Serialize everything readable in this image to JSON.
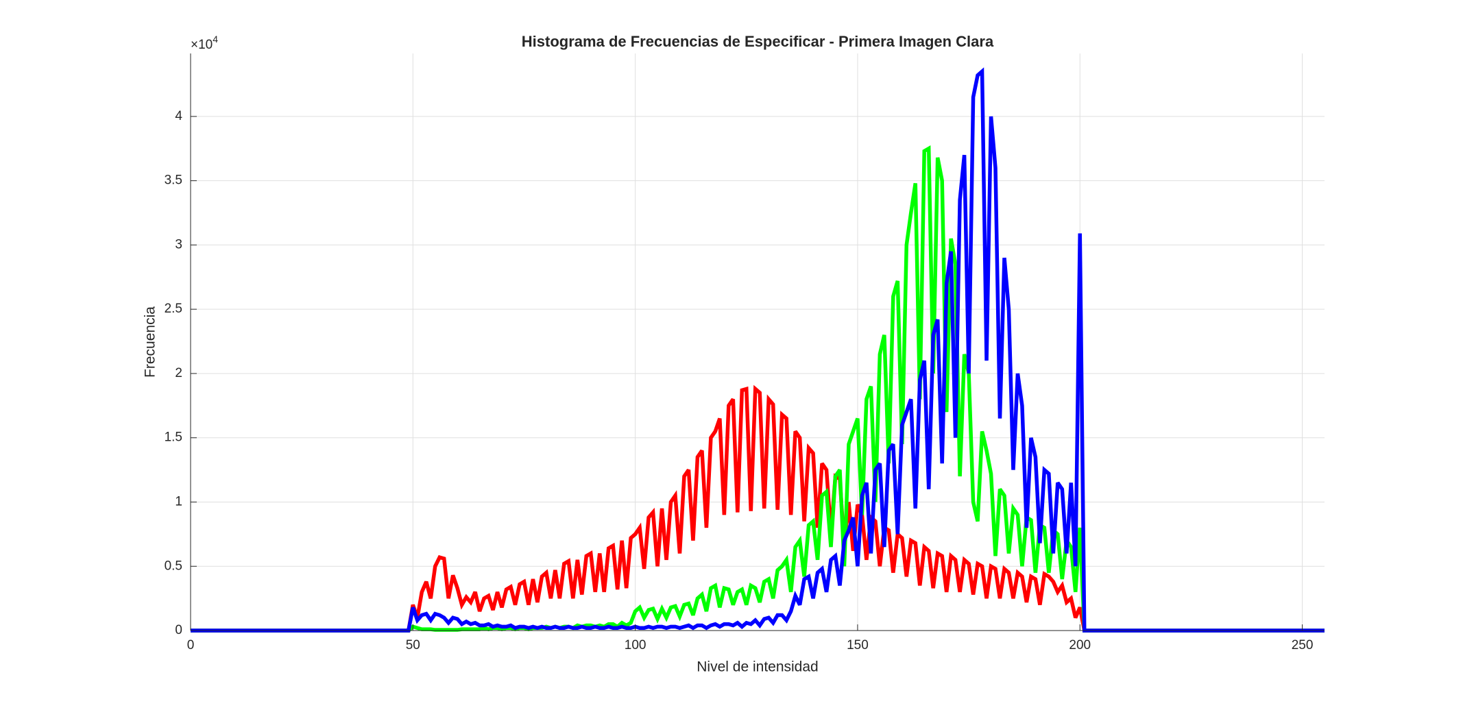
{
  "chart_data": {
    "type": "line",
    "title": "Histograma de Frecuencias de Especificar - Primera Imagen Clara",
    "x_label": "Nivel de intensidad",
    "y_label": "Frecuencia",
    "y_multiplier": "×10",
    "y_multiplier_exponent": "4",
    "xlim": [
      0,
      255
    ],
    "xticks": [
      0,
      50,
      100,
      150,
      200,
      250
    ],
    "ylim": [
      0,
      4.49
    ],
    "yticks": [
      0,
      0.5,
      1,
      1.5,
      2,
      2.5,
      3,
      3.5,
      4
    ],
    "grid": true,
    "x": [
      0,
      1,
      2,
      3,
      4,
      5,
      6,
      7,
      8,
      9,
      10,
      11,
      12,
      13,
      14,
      15,
      16,
      17,
      18,
      19,
      20,
      21,
      22,
      23,
      24,
      25,
      26,
      27,
      28,
      29,
      30,
      31,
      32,
      33,
      34,
      35,
      36,
      37,
      38,
      39,
      40,
      41,
      42,
      43,
      44,
      45,
      46,
      47,
      48,
      49,
      50,
      51,
      52,
      53,
      54,
      55,
      56,
      57,
      58,
      59,
      60,
      61,
      62,
      63,
      64,
      65,
      66,
      67,
      68,
      69,
      70,
      71,
      72,
      73,
      74,
      75,
      76,
      77,
      78,
      79,
      80,
      81,
      82,
      83,
      84,
      85,
      86,
      87,
      88,
      89,
      90,
      91,
      92,
      93,
      94,
      95,
      96,
      97,
      98,
      99,
      100,
      101,
      102,
      103,
      104,
      105,
      106,
      107,
      108,
      109,
      110,
      111,
      112,
      113,
      114,
      115,
      116,
      117,
      118,
      119,
      120,
      121,
      122,
      123,
      124,
      125,
      126,
      127,
      128,
      129,
      130,
      131,
      132,
      133,
      134,
      135,
      136,
      137,
      138,
      139,
      140,
      141,
      142,
      143,
      144,
      145,
      146,
      147,
      148,
      149,
      150,
      151,
      152,
      153,
      154,
      155,
      156,
      157,
      158,
      159,
      160,
      161,
      162,
      163,
      164,
      165,
      166,
      167,
      168,
      169,
      170,
      171,
      172,
      173,
      174,
      175,
      176,
      177,
      178,
      179,
      180,
      181,
      182,
      183,
      184,
      185,
      186,
      187,
      188,
      189,
      190,
      191,
      192,
      193,
      194,
      195,
      196,
      197,
      198,
      199,
      200,
      201,
      202,
      203,
      204,
      205,
      206,
      207,
      208,
      209,
      210,
      211,
      212,
      213,
      214,
      215,
      216,
      217,
      218,
      219,
      220,
      221,
      222,
      223,
      224,
      225,
      226,
      227,
      228,
      229,
      230,
      231,
      232,
      233,
      234,
      235,
      236,
      237,
      238,
      239,
      240,
      241,
      242,
      243,
      244,
      245,
      246,
      247,
      248,
      249,
      250,
      251,
      252,
      253,
      254,
      255
    ],
    "series": [
      {
        "color": "#ff0000",
        "values": [
          0,
          0,
          0,
          0,
          0,
          0,
          0,
          0,
          0,
          0,
          0,
          0,
          0,
          0,
          0,
          0,
          0,
          0,
          0,
          0,
          0,
          0,
          0,
          0,
          0,
          0,
          0,
          0,
          0,
          0,
          0,
          0,
          0,
          0,
          0,
          0,
          0,
          0,
          0,
          0,
          0,
          0,
          0,
          0,
          0,
          0,
          0,
          0,
          0,
          0,
          0.2,
          0.1,
          0.3,
          0.38,
          0.25,
          0.5,
          0.57,
          0.56,
          0.25,
          0.43,
          0.33,
          0.2,
          0.26,
          0.22,
          0.3,
          0.15,
          0.25,
          0.27,
          0.16,
          0.3,
          0.18,
          0.32,
          0.34,
          0.2,
          0.36,
          0.38,
          0.2,
          0.4,
          0.22,
          0.42,
          0.45,
          0.25,
          0.47,
          0.25,
          0.52,
          0.54,
          0.25,
          0.55,
          0.28,
          0.58,
          0.6,
          0.3,
          0.6,
          0.3,
          0.64,
          0.66,
          0.32,
          0.7,
          0.33,
          0.72,
          0.75,
          0.8,
          0.48,
          0.88,
          0.92,
          0.5,
          0.95,
          0.55,
          1.0,
          1.05,
          0.6,
          1.2,
          1.25,
          0.7,
          1.35,
          1.4,
          0.8,
          1.5,
          1.55,
          1.65,
          0.9,
          1.75,
          1.8,
          0.92,
          1.87,
          1.88,
          0.93,
          1.88,
          1.85,
          0.95,
          1.8,
          1.76,
          0.94,
          1.68,
          1.65,
          0.9,
          1.55,
          1.5,
          0.85,
          1.42,
          1.38,
          0.8,
          1.3,
          1.25,
          0.75,
          1.2,
          1.18,
          0.65,
          1.0,
          0.62,
          0.98,
          0.9,
          0.55,
          0.88,
          0.85,
          0.5,
          0.8,
          0.78,
          0.45,
          0.75,
          0.72,
          0.42,
          0.7,
          0.68,
          0.35,
          0.65,
          0.62,
          0.33,
          0.6,
          0.58,
          0.3,
          0.58,
          0.55,
          0.3,
          0.55,
          0.52,
          0.28,
          0.52,
          0.5,
          0.25,
          0.5,
          0.48,
          0.25,
          0.48,
          0.45,
          0.25,
          0.45,
          0.42,
          0.22,
          0.42,
          0.4,
          0.2,
          0.44,
          0.42,
          0.38,
          0.3,
          0.35,
          0.22,
          0.25,
          0.1,
          0.18,
          0,
          0,
          0,
          0,
          0,
          0,
          0,
          0,
          0,
          0,
          0,
          0,
          0,
          0,
          0,
          0,
          0,
          0,
          0,
          0,
          0,
          0,
          0,
          0,
          0,
          0,
          0,
          0,
          0,
          0,
          0,
          0,
          0,
          0,
          0,
          0,
          0,
          0,
          0,
          0,
          0,
          0,
          0,
          0,
          0,
          0,
          0,
          0,
          0,
          0,
          0,
          0,
          0,
          0,
          0
        ]
      },
      {
        "color": "#00ff00",
        "values": [
          0,
          0,
          0,
          0,
          0,
          0,
          0,
          0,
          0,
          0,
          0,
          0,
          0,
          0,
          0,
          0,
          0,
          0,
          0,
          0,
          0,
          0,
          0,
          0,
          0,
          0,
          0,
          0,
          0,
          0,
          0,
          0,
          0,
          0,
          0,
          0,
          0,
          0,
          0,
          0,
          0,
          0,
          0,
          0,
          0,
          0,
          0,
          0,
          0,
          0,
          0.03,
          0.02,
          0.01,
          0.01,
          0.01,
          0.005,
          0.005,
          0.005,
          0.005,
          0.005,
          0.005,
          0.01,
          0.01,
          0.01,
          0.01,
          0.01,
          0.02,
          0.01,
          0.02,
          0.02,
          0.01,
          0.02,
          0.02,
          0.01,
          0.02,
          0.02,
          0.01,
          0.02,
          0.02,
          0.02,
          0.03,
          0.02,
          0.03,
          0.02,
          0.03,
          0.03,
          0.02,
          0.04,
          0.03,
          0.04,
          0.04,
          0.03,
          0.04,
          0.03,
          0.05,
          0.05,
          0.03,
          0.06,
          0.04,
          0.06,
          0.15,
          0.18,
          0.1,
          0.16,
          0.17,
          0.09,
          0.17,
          0.1,
          0.18,
          0.19,
          0.11,
          0.2,
          0.21,
          0.12,
          0.25,
          0.28,
          0.15,
          0.33,
          0.35,
          0.18,
          0.33,
          0.32,
          0.2,
          0.3,
          0.32,
          0.2,
          0.35,
          0.33,
          0.22,
          0.38,
          0.4,
          0.25,
          0.47,
          0.5,
          0.55,
          0.3,
          0.65,
          0.7,
          0.42,
          0.82,
          0.85,
          0.55,
          1.05,
          1.08,
          0.65,
          1.2,
          1.25,
          0.5,
          1.45,
          1.55,
          1.65,
          0.9,
          1.8,
          1.9,
          1.0,
          2.15,
          2.3,
          1.3,
          2.6,
          2.72,
          1.45,
          3.0,
          3.25,
          3.48,
          1.8,
          3.73,
          3.75,
          2.0,
          3.68,
          3.5,
          1.7,
          3.05,
          2.85,
          1.2,
          2.15,
          2.0,
          1.0,
          0.85,
          1.55,
          1.4,
          1.22,
          0.58,
          1.1,
          1.05,
          0.6,
          0.95,
          0.9,
          0.5,
          0.88,
          0.86,
          0.45,
          0.82,
          0.8,
          0.45,
          0.78,
          0.75,
          0.4,
          0.7,
          0.65,
          0.3,
          0.8,
          0,
          0,
          0,
          0,
          0,
          0,
          0,
          0,
          0,
          0,
          0,
          0,
          0,
          0,
          0,
          0,
          0,
          0,
          0,
          0,
          0,
          0,
          0,
          0,
          0,
          0,
          0,
          0,
          0,
          0,
          0,
          0,
          0,
          0,
          0,
          0,
          0,
          0,
          0,
          0,
          0,
          0,
          0,
          0,
          0,
          0,
          0,
          0,
          0,
          0,
          0,
          0,
          0,
          0,
          0
        ]
      },
      {
        "color": "#0000ff",
        "values": [
          0,
          0,
          0,
          0,
          0,
          0,
          0,
          0,
          0,
          0,
          0,
          0,
          0,
          0,
          0,
          0,
          0,
          0,
          0,
          0,
          0,
          0,
          0,
          0,
          0,
          0,
          0,
          0,
          0,
          0,
          0,
          0,
          0,
          0,
          0,
          0,
          0,
          0,
          0,
          0,
          0,
          0,
          0,
          0,
          0,
          0,
          0,
          0,
          0,
          0,
          0.18,
          0.08,
          0.12,
          0.13,
          0.08,
          0.13,
          0.12,
          0.1,
          0.06,
          0.1,
          0.09,
          0.05,
          0.07,
          0.05,
          0.06,
          0.04,
          0.04,
          0.05,
          0.03,
          0.04,
          0.03,
          0.03,
          0.04,
          0.02,
          0.03,
          0.03,
          0.02,
          0.03,
          0.02,
          0.03,
          0.02,
          0.02,
          0.03,
          0.02,
          0.02,
          0.03,
          0.02,
          0.02,
          0.03,
          0.02,
          0.02,
          0.03,
          0.02,
          0.02,
          0.03,
          0.02,
          0.02,
          0.03,
          0.02,
          0.02,
          0.03,
          0.02,
          0.02,
          0.03,
          0.02,
          0.03,
          0.03,
          0.02,
          0.03,
          0.03,
          0.02,
          0.03,
          0.04,
          0.02,
          0.04,
          0.04,
          0.02,
          0.04,
          0.05,
          0.03,
          0.05,
          0.05,
          0.04,
          0.06,
          0.03,
          0.06,
          0.05,
          0.08,
          0.04,
          0.09,
          0.1,
          0.06,
          0.12,
          0.12,
          0.08,
          0.15,
          0.27,
          0.2,
          0.4,
          0.42,
          0.25,
          0.45,
          0.48,
          0.3,
          0.55,
          0.58,
          0.35,
          0.7,
          0.78,
          0.88,
          0.5,
          1.05,
          1.15,
          0.6,
          1.25,
          1.3,
          0.65,
          1.4,
          1.45,
          0.75,
          1.6,
          1.7,
          1.8,
          0.95,
          1.95,
          2.1,
          1.1,
          2.3,
          2.42,
          1.3,
          2.7,
          2.95,
          1.5,
          3.35,
          3.7,
          2.0,
          4.15,
          4.32,
          4.35,
          2.1,
          4.0,
          3.6,
          1.65,
          2.9,
          2.5,
          1.25,
          2.0,
          1.75,
          0.8,
          1.5,
          1.35,
          0.68,
          1.25,
          1.22,
          0.6,
          1.15,
          1.1,
          0.6,
          1.15,
          0.5,
          3.09,
          0,
          0,
          0,
          0,
          0,
          0,
          0,
          0,
          0,
          0,
          0,
          0,
          0,
          0,
          0,
          0,
          0,
          0,
          0,
          0,
          0,
          0,
          0,
          0,
          0,
          0,
          0,
          0,
          0,
          0,
          0,
          0,
          0,
          0,
          0,
          0,
          0,
          0,
          0,
          0,
          0,
          0,
          0,
          0,
          0,
          0,
          0,
          0,
          0,
          0,
          0,
          0,
          0,
          0,
          0
        ]
      }
    ]
  }
}
